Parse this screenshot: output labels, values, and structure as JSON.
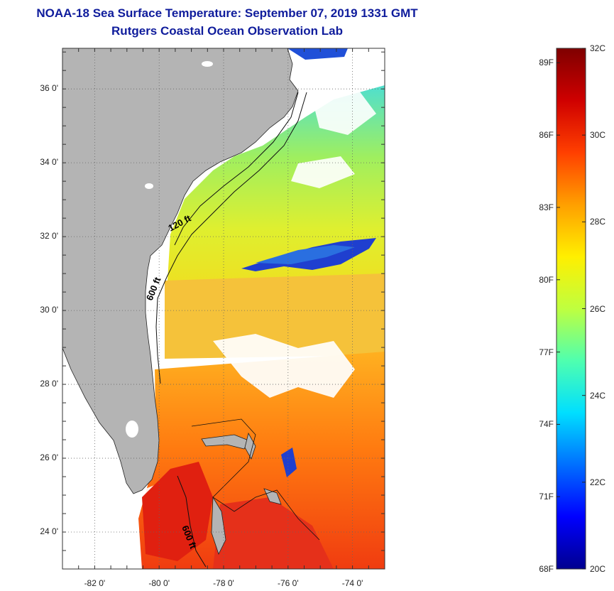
{
  "title": "NOAA-18 Sea Surface Temperature:  September 07, 2019 1331 GMT",
  "subtitle": "Rutgers Coastal Ocean Observation Lab",
  "map": {
    "lat_ticks": [
      "36 0'",
      "34 0'",
      "32 0'",
      "30 0'",
      "28 0'",
      "26 0'",
      "24 0'"
    ],
    "lat_values": [
      36,
      34,
      32,
      30,
      28,
      26,
      24
    ],
    "lon_ticks": [
      "-82 0'",
      "-80 0'",
      "-78 0'",
      "-76 0'",
      "-74 0'"
    ],
    "lon_values": [
      -82,
      -80,
      -78,
      -76,
      -74
    ],
    "lat_range": [
      23,
      37.1
    ],
    "lon_range": [
      -83,
      -73
    ],
    "isobaths": [
      "120 ft",
      "600 ft",
      "600 ft"
    ],
    "colors": {
      "land": "#b4b4b4",
      "cloud": "#ffffff",
      "grid": "#666666"
    }
  },
  "colorbar": {
    "celsius": [
      "32C",
      "30C",
      "28C",
      "26C",
      "24C",
      "22C",
      "20C"
    ],
    "fahrenheit": [
      "89F",
      "86F",
      "83F",
      "80F",
      "77F",
      "74F",
      "71F",
      "68F"
    ],
    "range_c": [
      20,
      32
    ],
    "colors": [
      "#00008f",
      "#0000ff",
      "#006fff",
      "#00dfff",
      "#4fffaf",
      "#bfff3f",
      "#ffef00",
      "#ff9f00",
      "#ff3f00",
      "#cf0000",
      "#7f0000"
    ]
  }
}
